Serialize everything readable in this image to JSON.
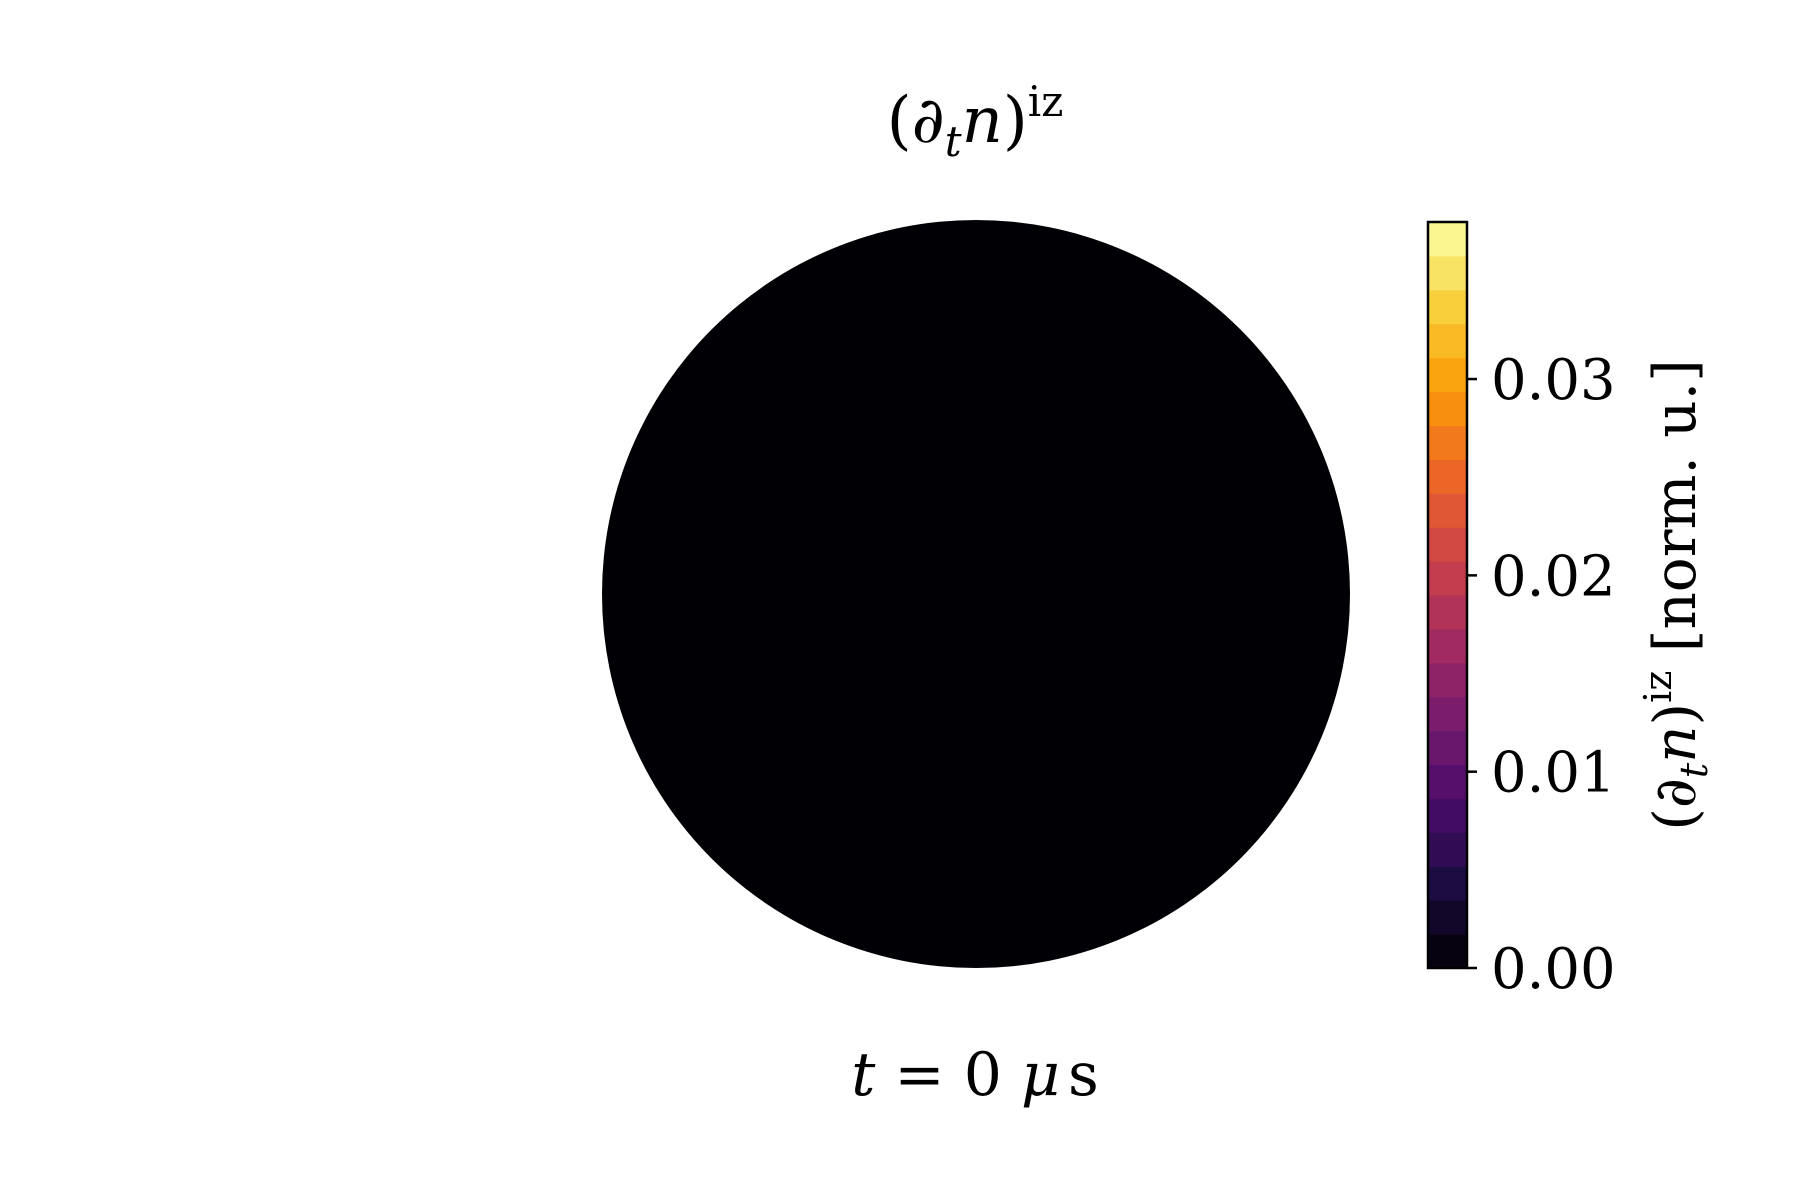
{
  "chart_data": {
    "type": "heatmap",
    "title": {
      "base": "(∂",
      "sub": "t",
      "var": "n",
      "close": ")",
      "sup": "iz"
    },
    "time_label": {
      "var": "t",
      "rest": " = 0 ",
      "unit_var": "μ",
      "unit": "s"
    },
    "domain_shape": "circle",
    "field_values": [
      [
        0.0
      ]
    ],
    "colormap": "inferno",
    "colorbar": {
      "range": [
        0.0,
        0.038
      ],
      "levels": 22,
      "ticks": [
        0.0,
        0.01,
        0.02,
        0.03
      ],
      "tick_labels": [
        "0.00",
        "0.01",
        "0.02",
        "0.03"
      ],
      "label": {
        "base": "(∂",
        "sub": "t",
        "var": "n",
        "close": ")",
        "sup": "iz",
        "unit": " [norm. u.]"
      }
    },
    "colors": {
      "field": "#000000",
      "colorbar_stops": [
        "#000004",
        "#1b0c41",
        "#4a0c6b",
        "#781c6d",
        "#a52c60",
        "#cf4446",
        "#ed6925",
        "#fb9b06",
        "#f7d13d",
        "#fcffa4"
      ]
    }
  }
}
